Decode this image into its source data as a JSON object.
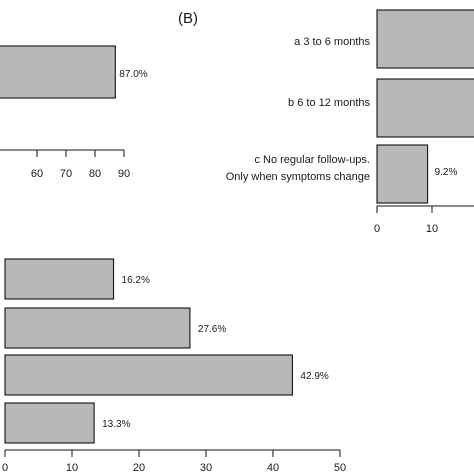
{
  "chart_data": [
    {
      "type": "bar",
      "orientation": "horizontal",
      "panel_label": "",
      "categories": [
        ""
      ],
      "values": [
        87.0
      ],
      "value_labels": [
        "87.0%"
      ],
      "xticks": [
        "60",
        "70",
        "80",
        "90"
      ],
      "xlim": [
        0,
        90
      ],
      "grid": false,
      "bar_color": "#b8b8b8"
    },
    {
      "type": "bar",
      "orientation": "horizontal",
      "panel_label": "(B)",
      "categories": [
        "a 3 to 6 months",
        "b 6 to 12 months",
        "c No regular follow-ups.\nOnly when symptoms change"
      ],
      "values": [
        null,
        null,
        9.2
      ],
      "value_labels": [
        "",
        "",
        "9.2%"
      ],
      "xticks": [
        "0",
        "10"
      ],
      "xlim": [
        0,
        10
      ],
      "grid": false,
      "bar_color": "#b8b8b8"
    },
    {
      "type": "bar",
      "orientation": "horizontal",
      "panel_label": "",
      "categories": [
        "",
        "",
        "",
        ""
      ],
      "values": [
        16.2,
        27.6,
        42.9,
        13.3
      ],
      "value_labels": [
        "16.2%",
        "27.6%",
        "42.9%",
        "13.3%"
      ],
      "xticks": [
        "0",
        "10",
        "20",
        "30",
        "40",
        "50"
      ],
      "xlim": [
        0,
        50
      ],
      "grid": false,
      "bar_color": "#b8b8b8"
    }
  ]
}
